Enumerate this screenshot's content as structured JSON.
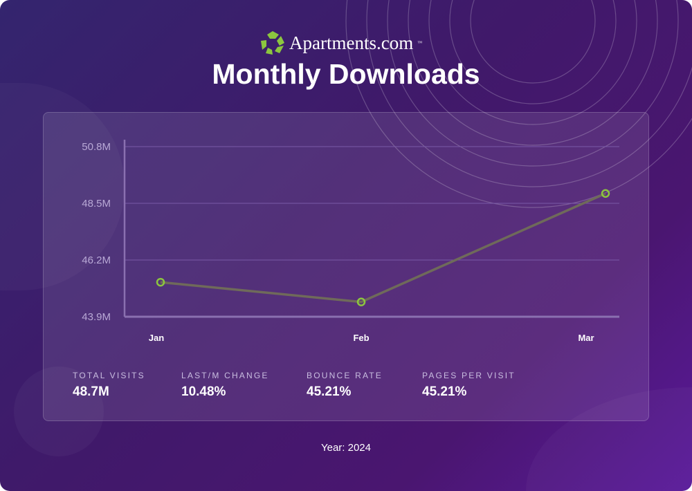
{
  "brand": {
    "name": "Apartments.com",
    "tm": "™"
  },
  "colors": {
    "line": "#6f6a5a",
    "marker": "#8cc63f",
    "grid": "#7a5aa8"
  },
  "chart_data": {
    "type": "line",
    "title": "Monthly Downloads",
    "categories": [
      "Jan",
      "Feb",
      "Mar"
    ],
    "series": [
      {
        "name": "Downloads",
        "values": [
          45.3,
          44.5,
          48.9
        ]
      }
    ],
    "ylim": [
      43.9,
      50.8
    ],
    "yticks": [
      43.9,
      46.2,
      48.5,
      50.8
    ],
    "ytick_labels": [
      "43.9M",
      "46.2M",
      "48.5M",
      "50.8M"
    ],
    "xlabel": "",
    "ylabel": "",
    "grid": true,
    "legend": "none"
  },
  "stats": [
    {
      "label": "TOTAL VISITS",
      "value": "48.7M"
    },
    {
      "label": "LAST/M CHANGE",
      "value": "10.48%"
    },
    {
      "label": "BOUNCE RATE",
      "value": "45.21%"
    },
    {
      "label": "PAGES PER VISIT",
      "value": "45.21%"
    }
  ],
  "footer": "Year: 2024"
}
